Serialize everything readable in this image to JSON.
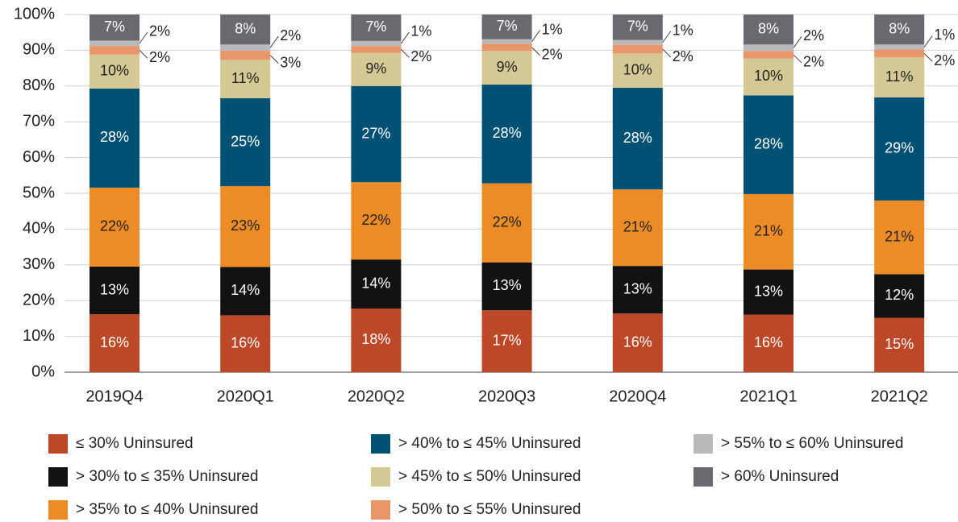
{
  "chart_data": {
    "type": "stacked_bar",
    "categories": [
      "2019Q4",
      "2020Q1",
      "2020Q2",
      "2020Q3",
      "2020Q4",
      "2021Q1",
      "2021Q2"
    ],
    "ylim": [
      0,
      100
    ],
    "yticks": [
      {
        "value": 0,
        "label": "0%"
      },
      {
        "value": 10,
        "label": "10%"
      },
      {
        "value": 20,
        "label": "20%"
      },
      {
        "value": 30,
        "label": "30%"
      },
      {
        "value": 40,
        "label": "40%"
      },
      {
        "value": 50,
        "label": "50%"
      },
      {
        "value": 60,
        "label": "60%"
      },
      {
        "value": 70,
        "label": "70%"
      },
      {
        "value": 80,
        "label": "80%"
      },
      {
        "value": 90,
        "label": "90%"
      },
      {
        "value": 100,
        "label": "100%"
      }
    ],
    "grid": true,
    "series": [
      {
        "name": "≤ 30% Uninsured",
        "color": "#bd4827",
        "values": [
          16.2,
          15.9,
          17.8,
          17.3,
          16.4,
          16.1,
          15.2
        ],
        "value_labels": [
          "16%",
          "16%",
          "18%",
          "17%",
          "16%",
          "16%",
          "15%"
        ]
      },
      {
        "name": "> 30% to ≤ 35% Uninsured",
        "color": "#121212",
        "values": [
          13.3,
          13.5,
          13.7,
          13.4,
          13.3,
          12.6,
          12.2
        ],
        "value_labels": [
          "13%",
          "14%",
          "14%",
          "13%",
          "13%",
          "13%",
          "12%"
        ]
      },
      {
        "name": "> 35% to ≤ 40% Uninsured",
        "color": "#ec8c27",
        "values": [
          22.1,
          22.6,
          21.6,
          22.1,
          21.4,
          21.1,
          20.6
        ],
        "value_labels": [
          "22%",
          "23%",
          "22%",
          "22%",
          "21%",
          "21%",
          "21%"
        ]
      },
      {
        "name": "> 40% to ≤ 45% Uninsured",
        "color": "#005173",
        "values": [
          27.7,
          24.6,
          26.9,
          27.6,
          28.4,
          27.6,
          28.8
        ],
        "value_labels": [
          "28%",
          "25%",
          "27%",
          "28%",
          "28%",
          "28%",
          "29%"
        ]
      },
      {
        "name": "> 45% to ≤ 50% Uninsured",
        "color": "#d4c995",
        "values": [
          9.5,
          10.7,
          9.3,
          9.4,
          9.6,
          10.3,
          11.2
        ],
        "value_labels": [
          "10%",
          "11%",
          "9%",
          "9%",
          "10%",
          "10%",
          "11%"
        ]
      },
      {
        "name": "> 50% to ≤ 55% Uninsured",
        "color": "#ea966b",
        "values": [
          2.4,
          2.6,
          1.9,
          2.0,
          2.4,
          2.1,
          2.2
        ],
        "value_labels": [
          "2%",
          "3%",
          "2%",
          "2%",
          "2%",
          "2%",
          "2%"
        ]
      },
      {
        "name": "> 55% to ≤ 60% Uninsured",
        "color": "#b9b9bc",
        "values": [
          1.5,
          1.7,
          1.4,
          1.3,
          1.4,
          1.8,
          1.4
        ],
        "value_labels": [
          "2%",
          "2%",
          "1%",
          "1%",
          "1%",
          "2%",
          "1%"
        ]
      },
      {
        "name": "> 60% Uninsured",
        "color": "#696a70",
        "values": [
          7.3,
          8.4,
          7.4,
          6.9,
          7.1,
          8.4,
          8.4
        ],
        "value_labels": [
          "7%",
          "8%",
          "7%",
          "7%",
          "7%",
          "8%",
          "8%"
        ]
      }
    ]
  }
}
